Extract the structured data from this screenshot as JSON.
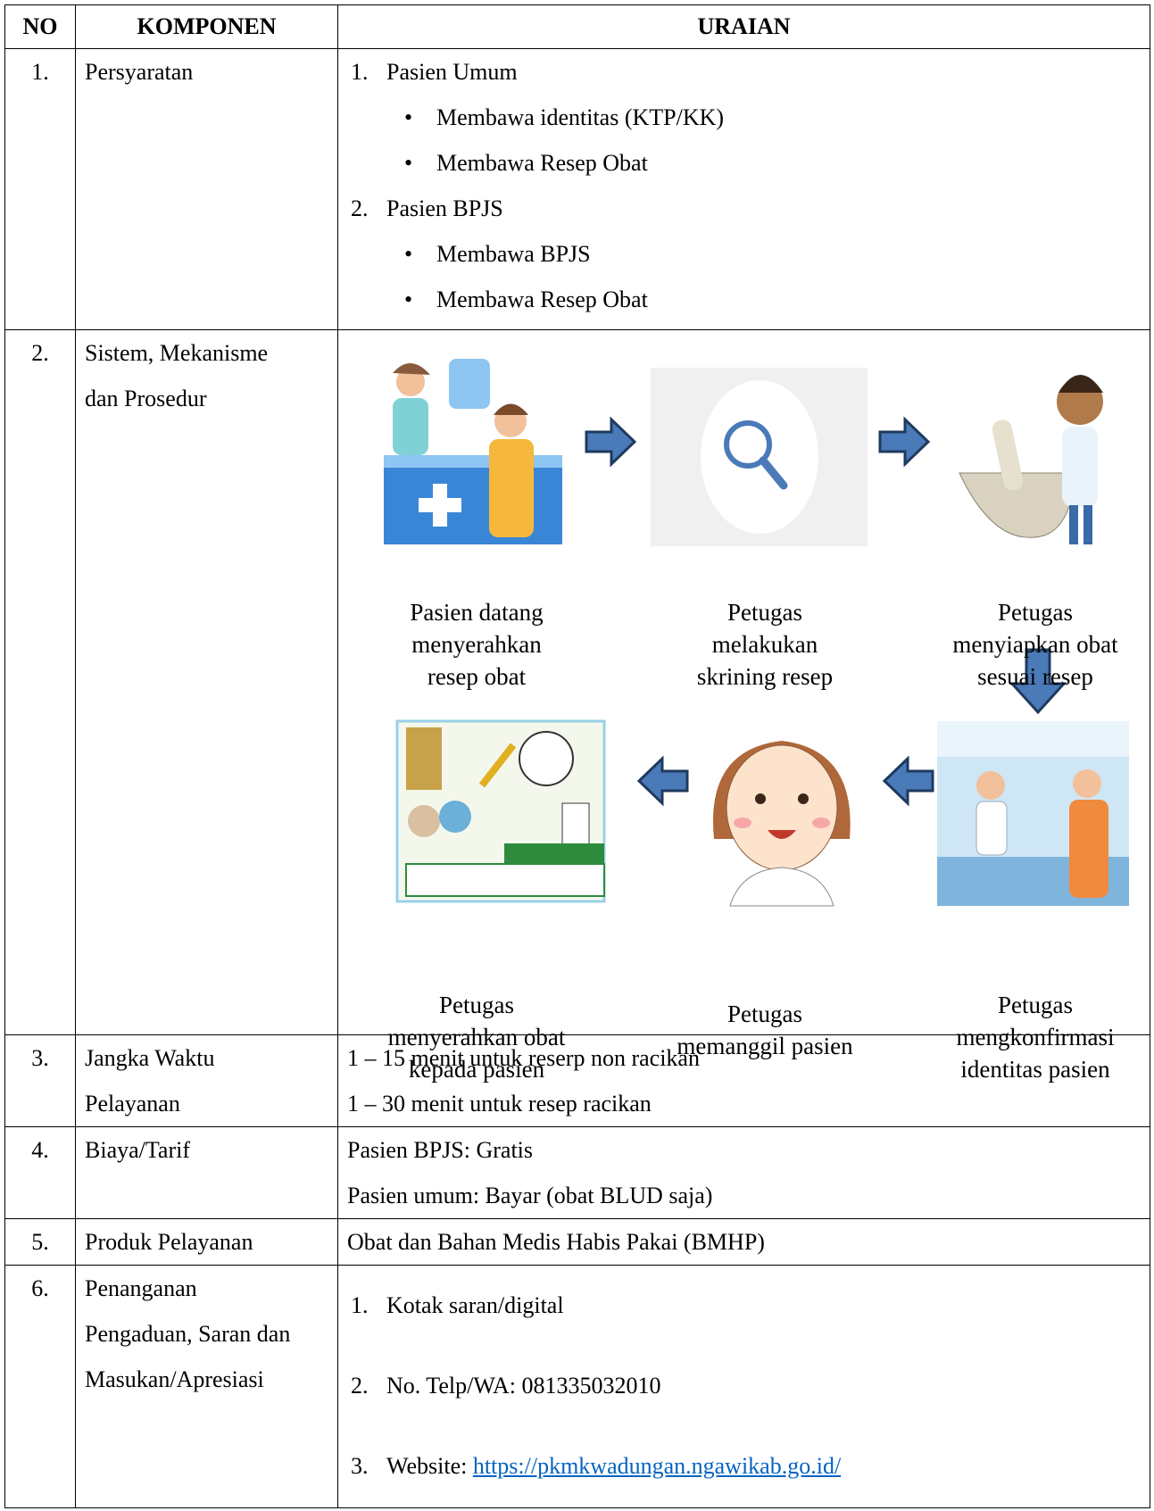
{
  "header": {
    "no": "NO",
    "komponen": "KOMPONEN",
    "uraian": "URAIAN"
  },
  "rows": [
    {
      "no": "1.",
      "komponen": [
        "Persyaratan"
      ],
      "uraian": [
        {
          "marker": "1.",
          "text": "Pasien Umum",
          "bullets": [
            "Membawa identitas (KTP/KK)",
            "Membawa Resep Obat"
          ]
        },
        {
          "marker": "2.",
          "text": "Pasien BPJS",
          "bullets": [
            "Membawa BPJS",
            "Membawa Resep Obat"
          ]
        }
      ]
    },
    {
      "no": "2.",
      "komponen": [
        "Sistem, Mekanisme",
        "dan Prosedur"
      ],
      "flow": [
        {
          "caption": [
            "Pasien datang",
            "menyerahkan",
            "resep obat"
          ]
        },
        {
          "caption": [
            "Petugas",
            "melakukan",
            "skrining resep"
          ]
        },
        {
          "caption": [
            "Petugas",
            "menyiapkan obat",
            "sesuai resep"
          ]
        },
        {
          "caption": [
            "Petugas",
            "mengkonfirmasi",
            "identitas pasien"
          ]
        },
        {
          "caption": [
            "Petugas",
            "memanggil pasien"
          ]
        },
        {
          "caption": [
            "Petugas",
            "menyerahkan obat",
            "kepada pasien"
          ]
        }
      ]
    },
    {
      "no": "3.",
      "komponen": [
        "Jangka Waktu",
        "Pelayanan"
      ],
      "uraian": [
        "1 – 15 menit untuk reserp non racikan",
        "1 – 30 menit untuk resep racikan"
      ]
    },
    {
      "no": "4.",
      "komponen": [
        "Biaya/Tarif"
      ],
      "uraian": [
        "Pasien BPJS: Gratis",
        "Pasien umum: Bayar (obat BLUD saja)"
      ]
    },
    {
      "no": "5.",
      "komponen": [
        "Produk Pelayanan"
      ],
      "uraian": [
        "Obat dan Bahan Medis Habis Pakai (BMHP)"
      ]
    },
    {
      "no": "6.",
      "komponen": [
        "Penanganan",
        "Pengaduan, Saran dan",
        "Masukan/Apresiasi"
      ],
      "uraian": [
        {
          "marker": "1.",
          "text": "Kotak saran/digital"
        },
        {
          "marker": "2.",
          "text": "No. Telp/WA: 081335032010"
        },
        {
          "marker": "3.",
          "text": "Website:",
          "link": "https://pkmkwadungan.ngawikab.go.id/"
        }
      ]
    }
  ]
}
